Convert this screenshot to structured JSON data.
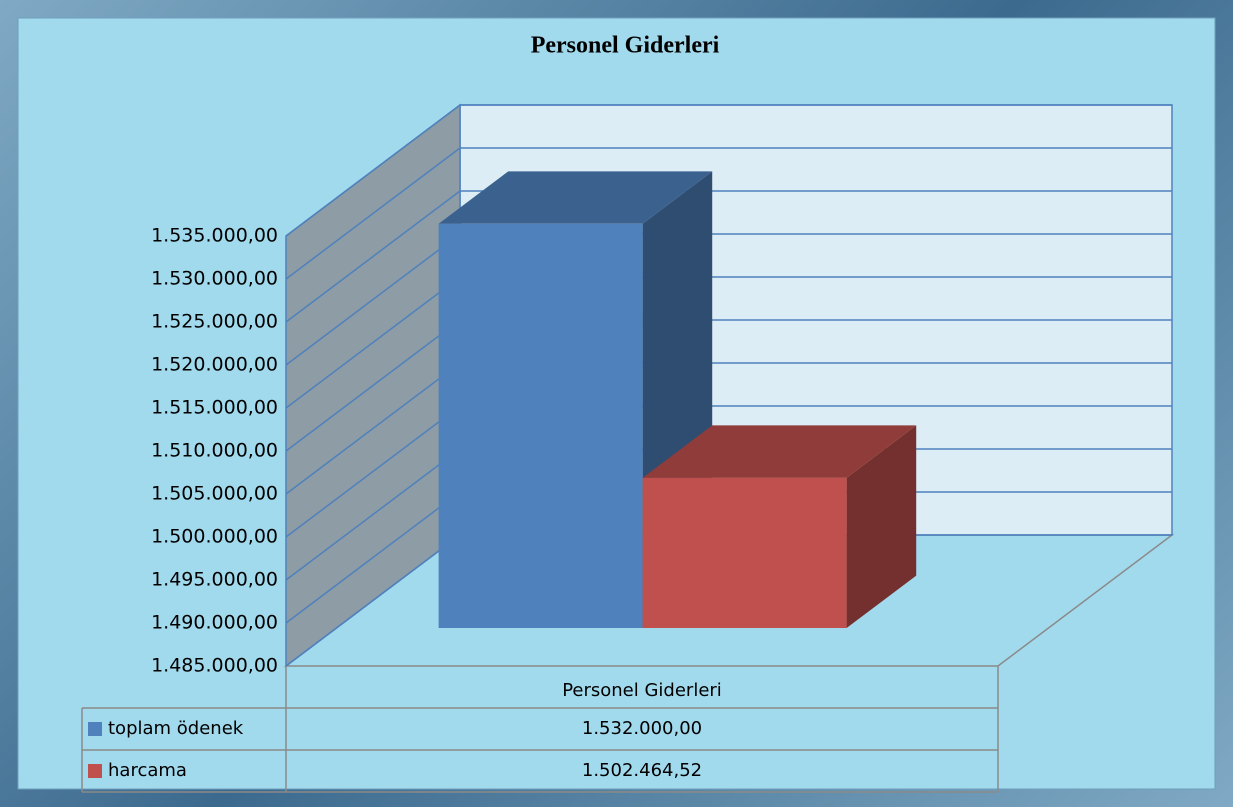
{
  "chart_data": {
    "type": "bar",
    "title": "Personel Giderleri",
    "categories": [
      "Personel Giderleri"
    ],
    "series": [
      {
        "name": "toplam ödenek",
        "color": "#4f81bd",
        "values": [
          1532000
        ],
        "value_labels": [
          "1.532.000,00"
        ]
      },
      {
        "name": "harcama",
        "color": "#c0504d",
        "values": [
          1502464.52
        ],
        "value_labels": [
          "1.502.464,52"
        ]
      }
    ],
    "ylim": [
      1485000,
      1535000
    ],
    "yticks": [
      {
        "value": 1485000,
        "label": "1.485.000,00"
      },
      {
        "value": 1490000,
        "label": "1.490.000,00"
      },
      {
        "value": 1495000,
        "label": "1.495.000,00"
      },
      {
        "value": 1500000,
        "label": "1.500.000,00"
      },
      {
        "value": 1505000,
        "label": "1.505.000,00"
      },
      {
        "value": 1510000,
        "label": "1.510.000,00"
      },
      {
        "value": 1515000,
        "label": "1.515.000,00"
      },
      {
        "value": 1520000,
        "label": "1.520.000,00"
      },
      {
        "value": 1525000,
        "label": "1.525.000,00"
      },
      {
        "value": 1530000,
        "label": "1.530.000,00"
      },
      {
        "value": 1535000,
        "label": "1.535.000,00"
      }
    ],
    "grid": true
  }
}
